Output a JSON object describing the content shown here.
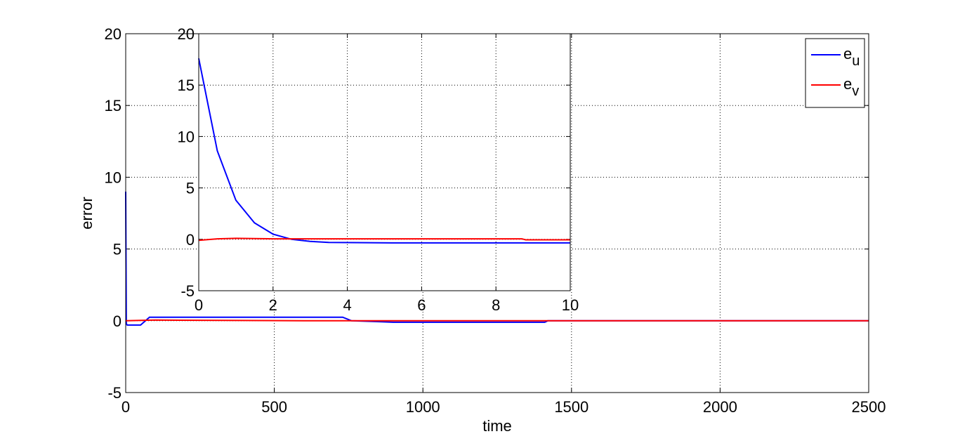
{
  "chart_data": [
    {
      "type": "line",
      "xlabel": "time",
      "ylabel": "error",
      "xlim": [
        0,
        2500
      ],
      "xticks": [
        0,
        500,
        1000,
        1500,
        2000,
        2500
      ],
      "ylim": [
        -5,
        20
      ],
      "yticks": [
        -5,
        0,
        5,
        10,
        15,
        20
      ],
      "grid": true,
      "legend": "northeast",
      "series": [
        {
          "name": "e_u",
          "color": "#0000ff",
          "x": [
            0,
            2,
            5,
            50,
            80,
            730,
            760,
            840,
            900,
            1410,
            1420,
            2500
          ],
          "values": [
            9,
            -0.2,
            -0.3,
            -0.3,
            0.25,
            0.25,
            0,
            -0.05,
            -0.1,
            -0.1,
            0,
            0
          ]
        },
        {
          "name": "e_v",
          "color": "#ff0000",
          "x": [
            0,
            100,
            600,
            2500
          ],
          "values": [
            0,
            0.05,
            0,
            0
          ]
        }
      ]
    },
    {
      "type": "line",
      "xlim": [
        0,
        10
      ],
      "xticks": [
        0,
        2,
        4,
        6,
        8,
        10
      ],
      "ylim": [
        -5,
        20
      ],
      "yticks": [
        -5,
        0,
        5,
        10,
        15,
        20
      ],
      "grid": true,
      "series": [
        {
          "color": "#0000ff",
          "x": [
            0,
            0.5,
            1,
            1.5,
            2,
            2.5,
            3,
            3.5,
            5.2,
            10
          ],
          "values": [
            17.6,
            8.6,
            3.8,
            1.6,
            0.5,
            0,
            -0.2,
            -0.3,
            -0.35,
            -0.35
          ]
        },
        {
          "color": "#ff0000",
          "x": [
            0,
            0.5,
            1,
            2,
            5,
            8.7,
            8.8,
            10
          ],
          "values": [
            -0.1,
            0.05,
            0.1,
            0.05,
            0.05,
            0.05,
            -0.05,
            -0.05
          ]
        }
      ]
    }
  ]
}
